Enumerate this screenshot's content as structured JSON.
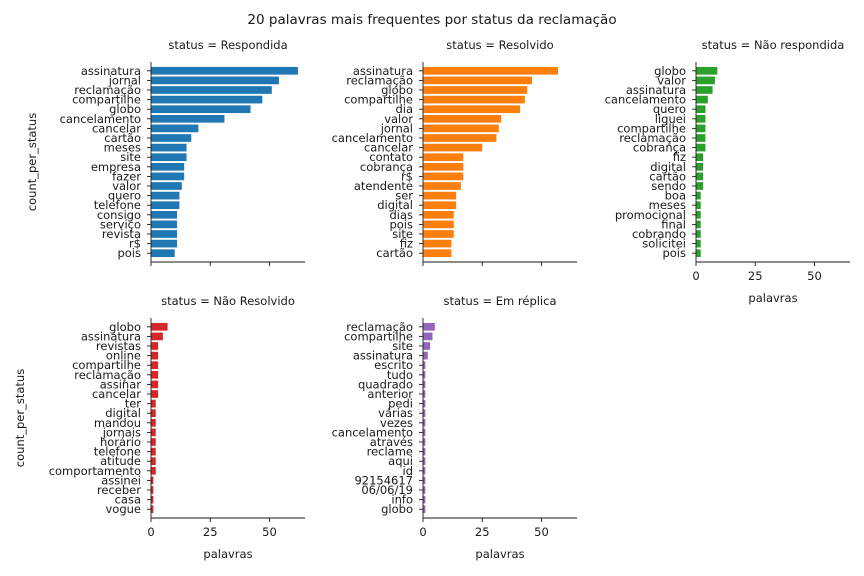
{
  "chart_data": {
    "type": "bar",
    "orientation": "horizontal",
    "title": "20 palavras mais frequentes por status da reclamação",
    "ylabel": "count_per_status",
    "xlabel": "palavras",
    "xlim": [
      0,
      65
    ],
    "xticks": [
      0,
      25,
      50
    ],
    "grid": false,
    "panels": [
      {
        "title": "status = Respondida",
        "color": "#1f77b4",
        "categories": [
          "assinatura",
          "jornal",
          "reclamação",
          "compartilhe",
          "globo",
          "cancelamento",
          "cancelar",
          "cartão",
          "meses",
          "site",
          "empresa",
          "fazer",
          "valor",
          "quero",
          "telefone",
          "consigo",
          "serviço",
          "revista",
          "r$",
          "pois"
        ],
        "values": [
          62,
          54,
          51,
          47,
          42,
          31,
          20,
          17,
          15,
          15,
          14,
          14,
          13,
          12,
          12,
          11,
          11,
          11,
          11,
          10
        ]
      },
      {
        "title": "status = Resolvido",
        "color": "#ff7f0e",
        "categories": [
          "assinatura",
          "reclamação",
          "globo",
          "compartilhe",
          "dia",
          "valor",
          "jornal",
          "cancelamento",
          "cancelar",
          "contato",
          "cobrança",
          "r$",
          "atendente",
          "ser",
          "digital",
          "dias",
          "pois",
          "site",
          "fiz",
          "cartão"
        ],
        "values": [
          57,
          46,
          44,
          43,
          41,
          33,
          32,
          31,
          25,
          17,
          17,
          17,
          16,
          14,
          14,
          13,
          13,
          13,
          12,
          12
        ]
      },
      {
        "title": "status = Não respondida",
        "color": "#2ca02c",
        "categories": [
          "globo",
          "valor",
          "assinatura",
          "cancelamento",
          "quero",
          "liguei",
          "compartilhe",
          "reclamação",
          "cobrança",
          "fiz",
          "digital",
          "cartão",
          "sendo",
          "boa",
          "meses",
          "promocional",
          "final",
          "cobrando",
          "solicitei",
          "pois"
        ],
        "values": [
          9,
          8,
          7,
          5,
          4,
          4,
          4,
          4,
          4,
          3,
          3,
          3,
          3,
          2,
          2,
          2,
          2,
          2,
          2,
          2
        ]
      },
      {
        "title": "status = Não Resolvido",
        "color": "#d62728",
        "categories": [
          "globo",
          "assinatura",
          "revistas",
          "online",
          "compartilhe",
          "reclamação",
          "assinar",
          "cancelar",
          "ter",
          "digital",
          "mandou",
          "jornais",
          "horário",
          "telefone",
          "atitude",
          "comportamento",
          "assinei",
          "receber",
          "casa",
          "vogue"
        ],
        "values": [
          7,
          5,
          3,
          3,
          3,
          3,
          3,
          3,
          2,
          2,
          2,
          2,
          2,
          2,
          2,
          2,
          1,
          1,
          1,
          1
        ]
      },
      {
        "title": "status = Em réplica",
        "color": "#9467bd",
        "categories": [
          "reclamação",
          "compartilhe",
          "site",
          "assinatura",
          "escrito",
          "tudo",
          "quadrado",
          "anterior",
          "pedi",
          "várias",
          "vezes",
          "cancelamento",
          "através",
          "reclame",
          "aqui",
          "id",
          "92154617",
          "06/06/19",
          "info",
          "globo"
        ],
        "values": [
          5,
          4,
          3,
          2,
          1,
          1,
          1,
          1,
          1,
          1,
          1,
          1,
          1,
          1,
          1,
          1,
          1,
          1,
          1,
          1
        ]
      }
    ]
  }
}
